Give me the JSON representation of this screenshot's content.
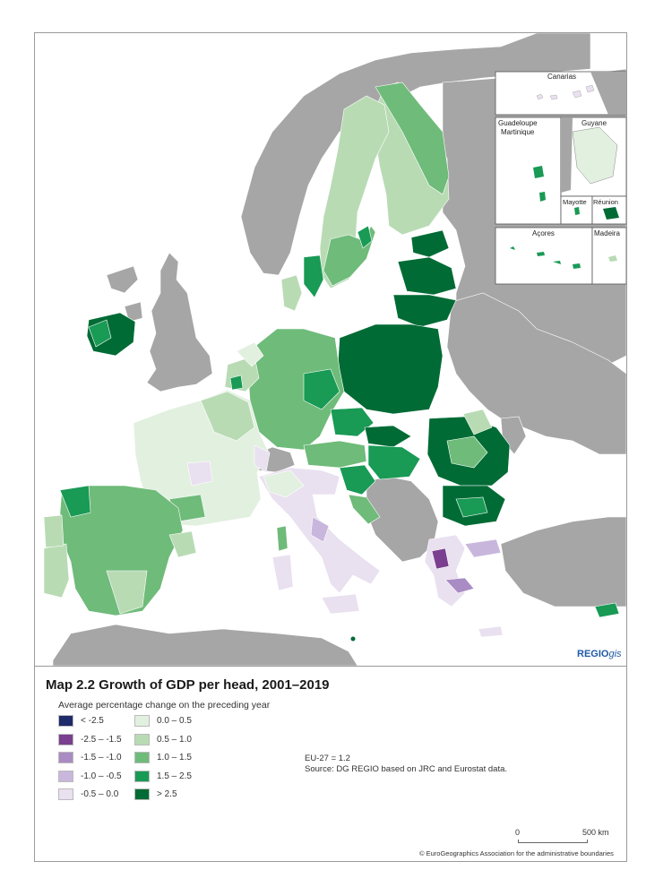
{
  "title": "Map 2.2 Growth of GDP per head, 2001–2019",
  "legend": {
    "heading": "Average percentage change on the preceding year",
    "items": [
      {
        "label": "< -2.5",
        "color": "#1f2a6b"
      },
      {
        "label": "-2.5 – -1.5",
        "color": "#7b3f8f"
      },
      {
        "label": "-1.5 – -1.0",
        "color": "#a98cc3"
      },
      {
        "label": "-1.0 – -0.5",
        "color": "#c9b6dc"
      },
      {
        "label": "-0.5 – 0.0",
        "color": "#e9e0f0"
      },
      {
        "label": "0.0 – 0.5",
        "color": "#e2f0e0"
      },
      {
        "label": "0.5 – 1.0",
        "color": "#b8dbb4"
      },
      {
        "label": "1.0 – 1.5",
        "color": "#6fbb7a"
      },
      {
        "label": "1.5 – 2.5",
        "color": "#199a55"
      },
      {
        "label": "> 2.5",
        "color": "#006b35"
      }
    ]
  },
  "eu_average": "EU-27 = 1.2",
  "source": "Source: DG REGIO based on JRC and Eurostat data.",
  "insets": {
    "canarias": "Canarias",
    "guadeloupe": "Guadeloupe",
    "martinique": "Martinique",
    "guyane": "Guyane",
    "mayotte": "Mayotte",
    "reunion": "Réunion",
    "acores": "Açores",
    "madeira": "Madeira"
  },
  "scale": {
    "start": "0",
    "end": "500 km"
  },
  "copyright": "© EuroGeographics Association for the administrative boundaries",
  "logo": {
    "main": "REGIO",
    "suffix": "gis"
  },
  "colors": {
    "sea": "#ffffff",
    "non_eu": "#a6a6a6",
    "border": "#ffffff"
  }
}
